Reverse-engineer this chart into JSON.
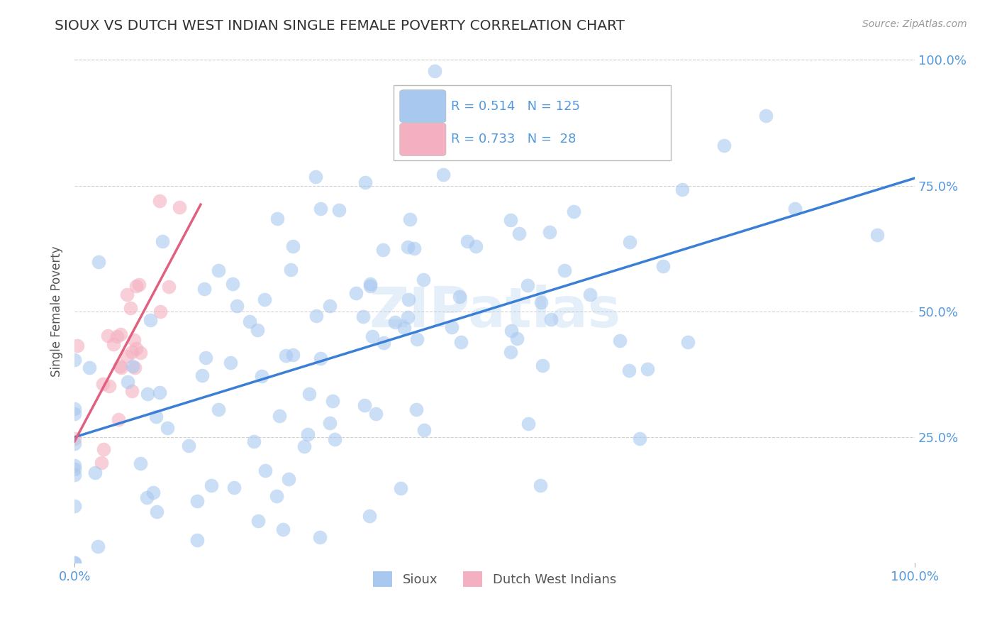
{
  "title": "SIOUX VS DUTCH WEST INDIAN SINGLE FEMALE POVERTY CORRELATION CHART",
  "source_text": "Source: ZipAtlas.com",
  "ylabel": "Single Female Poverty",
  "sioux_R": 0.514,
  "sioux_N": 125,
  "dutch_R": 0.733,
  "dutch_N": 28,
  "sioux_color": "#A8C8F0",
  "sioux_edge_color": "#A8C8F0",
  "sioux_line_color": "#3A7FD5",
  "dutch_color": "#F4B0C0",
  "dutch_edge_color": "#F4B0C0",
  "dutch_line_color": "#E06080",
  "bg_color": "#FFFFFF",
  "watermark": "ZIPatlas",
  "xlim": [
    0,
    100
  ],
  "ylim": [
    0,
    100
  ],
  "xtick_labels": [
    "0.0%",
    "100.0%"
  ],
  "xtick_vals": [
    0,
    100
  ],
  "ytick_labels": [
    "25.0%",
    "50.0%",
    "75.0%",
    "100.0%"
  ],
  "ytick_positions": [
    25,
    50,
    75,
    100
  ],
  "grid_color": "#CCCCCC",
  "title_color": "#333333",
  "axis_label_color": "#555555",
  "tick_color": "#5599DD",
  "legend_color": "#5599DD"
}
